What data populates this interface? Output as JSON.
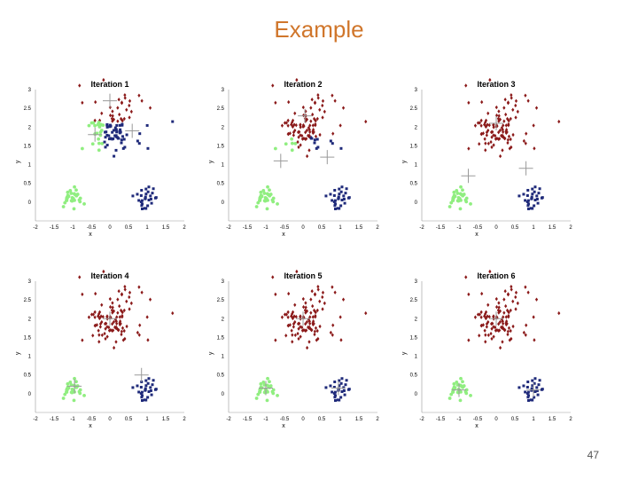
{
  "slide": {
    "title": "Example",
    "page_number": "47"
  },
  "colors": {
    "title": "#d0762b",
    "cluster_red": "#8b1a1a",
    "cluster_blue": "#1f2a7a",
    "cluster_green": "#90ee80",
    "centroid": "#9a9a9a"
  },
  "chart_data": [
    {
      "type": "scatter",
      "title": "Iteration 1",
      "xlabel": "x",
      "ylabel": "y",
      "xlim": [
        -2,
        2
      ],
      "ylim": [
        -0.5,
        3
      ],
      "xticks": [
        "-2",
        "-1.5",
        "-1",
        "-0.5",
        "0",
        "0.5",
        "1",
        "1.5",
        "2"
      ],
      "yticks": [
        "0",
        "0.5",
        "1",
        "1.5",
        "2",
        "2.5",
        "3"
      ],
      "centroids": [
        [
          0,
          2.7
        ],
        [
          -0.4,
          1.8
        ],
        [
          0.6,
          1.9
        ]
      ],
      "assignment": "initial"
    },
    {
      "type": "scatter",
      "title": "Iteration 2",
      "xlabel": "x",
      "ylabel": "y",
      "xlim": [
        -2,
        2
      ],
      "ylim": [
        -0.5,
        3
      ],
      "xticks": [
        "-2",
        "-1.5",
        "-1",
        "-0.5",
        "0",
        "0.5",
        "1",
        "1.5",
        "2"
      ],
      "yticks": [
        "0",
        "0.5",
        "1",
        "1.5",
        "2",
        "2.5",
        "3"
      ],
      "centroids": [
        [
          0.05,
          2.3
        ],
        [
          -0.6,
          1.1
        ],
        [
          0.65,
          1.2
        ]
      ],
      "assignment": "second"
    },
    {
      "type": "scatter",
      "title": "Iteration 3",
      "xlabel": "x",
      "ylabel": "y",
      "xlim": [
        -2,
        2
      ],
      "ylim": [
        -0.5,
        3
      ],
      "xticks": [
        "-2",
        "-1.5",
        "-1",
        "-0.5",
        "0",
        "0.5",
        "1",
        "1.5",
        "2"
      ],
      "yticks": [
        "0",
        "0.5",
        "1",
        "1.5",
        "2",
        "2.5",
        "3"
      ],
      "centroids": [
        [
          0,
          2.1
        ],
        [
          -0.75,
          0.7
        ],
        [
          0.8,
          0.9
        ]
      ],
      "assignment": "converged"
    },
    {
      "type": "scatter",
      "title": "Iteration 4",
      "xlabel": "x",
      "ylabel": "y",
      "xlim": [
        -2,
        2
      ],
      "ylim": [
        -0.5,
        3
      ],
      "xticks": [
        "-2",
        "-1.5",
        "-1",
        "-0.5",
        "0",
        "0.5",
        "1",
        "1.5",
        "2"
      ],
      "yticks": [
        "0",
        "0.5",
        "1",
        "1.5",
        "2",
        "2.5",
        "3"
      ],
      "centroids": [
        [
          0,
          2.0
        ],
        [
          -0.95,
          0.2
        ],
        [
          0.85,
          0.5
        ]
      ],
      "assignment": "converged"
    },
    {
      "type": "scatter",
      "title": "Iteration 5",
      "xlabel": "x",
      "ylabel": "y",
      "xlim": [
        -2,
        2
      ],
      "ylim": [
        -0.5,
        3
      ],
      "xticks": [
        "-2",
        "-1.5",
        "-1",
        "-0.5",
        "0",
        "0.5",
        "1",
        "1.5",
        "2"
      ],
      "yticks": [
        "0",
        "0.5",
        "1",
        "1.5",
        "2",
        "2.5",
        "3"
      ],
      "centroids": [
        [
          0,
          2.0
        ],
        [
          -1,
          0.15
        ],
        [
          0.95,
          0.15
        ]
      ],
      "assignment": "converged"
    },
    {
      "type": "scatter",
      "title": "Iteration 6",
      "xlabel": "x",
      "ylabel": "y",
      "xlim": [
        -2,
        2
      ],
      "ylim": [
        -0.5,
        3
      ],
      "xticks": [
        "-2",
        "-1.5",
        "-1",
        "-0.5",
        "0",
        "0.5",
        "1",
        "1.5",
        "2"
      ],
      "yticks": [
        "0",
        "0.5",
        "1",
        "1.5",
        "2",
        "2.5",
        "3"
      ],
      "centroids": [
        [
          0,
          2.0
        ],
        [
          -1,
          0.1
        ],
        [
          1,
          0.1
        ]
      ],
      "assignment": "converged"
    }
  ]
}
